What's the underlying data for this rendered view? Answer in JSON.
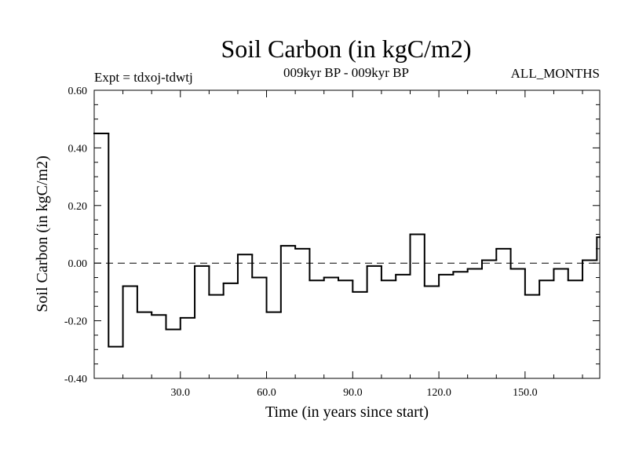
{
  "chart_data": {
    "type": "line",
    "step": true,
    "title": "Soil Carbon (in kgC/m2)",
    "subtitle_left": "Expt = tdxoj-tdwtj",
    "subtitle_center": "009kyr BP - 009kyr BP",
    "subtitle_right": "ALL_MONTHS",
    "xlabel": "Time (in years since start)",
    "ylabel": "Soil Carbon (in kgC/m2)",
    "xlim": [
      0,
      176
    ],
    "ylim": [
      -0.4,
      0.6
    ],
    "xticks": [
      30,
      60,
      90,
      120,
      150
    ],
    "xtick_labels": [
      "30.0",
      "60.0",
      "90.0",
      "120.0",
      "150.0"
    ],
    "yticks": [
      -0.4,
      -0.2,
      0.0,
      0.2,
      0.4,
      0.6
    ],
    "ytick_labels": [
      "-0.40",
      "-0.20",
      "0.00",
      "0.20",
      "0.40",
      "0.60"
    ],
    "reference_line": 0.0,
    "series": [
      {
        "name": "Soil Carbon",
        "x": [
          0,
          5,
          10,
          15,
          20,
          25,
          30,
          35,
          40,
          45,
          50,
          55,
          60,
          65,
          70,
          75,
          80,
          85,
          90,
          95,
          100,
          105,
          110,
          115,
          120,
          125,
          130,
          135,
          140,
          145,
          150,
          155,
          160,
          165,
          170,
          175
        ],
        "values": [
          0.45,
          -0.29,
          -0.08,
          -0.17,
          -0.18,
          -0.23,
          -0.19,
          -0.01,
          -0.11,
          -0.07,
          0.03,
          -0.05,
          -0.17,
          0.06,
          0.05,
          -0.06,
          -0.05,
          -0.06,
          -0.1,
          -0.01,
          -0.06,
          -0.04,
          0.1,
          -0.08,
          -0.04,
          -0.03,
          -0.02,
          0.01,
          0.05,
          -0.02,
          -0.11,
          -0.06,
          -0.02,
          -0.06,
          0.01,
          0.09
        ]
      }
    ]
  }
}
